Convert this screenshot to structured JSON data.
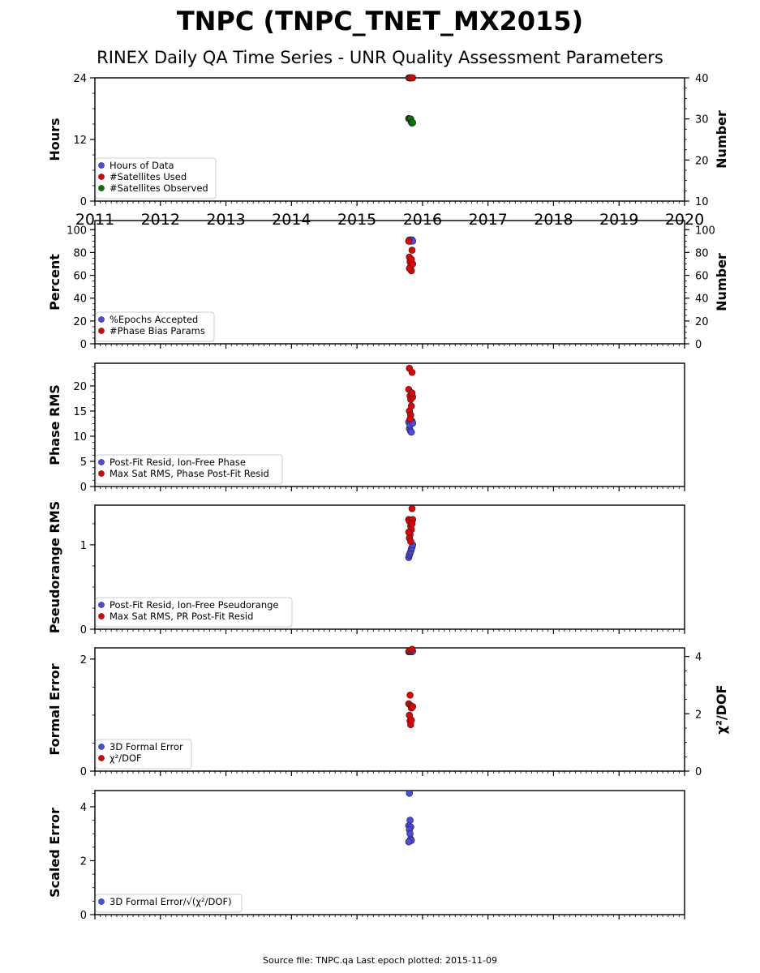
{
  "header": {
    "title": "TNPC (TNPC_TNET_MX2015)",
    "subtitle": "RINEX Daily QA Time Series - UNR Quality Assessment Parameters"
  },
  "footer": "Source file: TNPC.qa Last epoch plotted: 2015-11-09",
  "colors": {
    "blue": "#4a4ae8",
    "red": "#e60000",
    "green": "#007a00"
  },
  "chart_data": [
    {
      "type": "scatter",
      "xlim": [
        2011,
        2020
      ],
      "x_ticks": [
        "2011",
        "2012",
        "2013",
        "2014",
        "2015",
        "2016",
        "2017",
        "2018",
        "2019",
        "2020"
      ],
      "ylabel": "Hours",
      "ylim": [
        0,
        24
      ],
      "y_ticks": [
        "0",
        "12",
        "24"
      ],
      "y2label": "Number",
      "y2lim": [
        10,
        40
      ],
      "y2_ticks": [
        "10",
        "20",
        "30",
        "40"
      ],
      "legend": "lower-left",
      "series": [
        {
          "name": "Hours of Data",
          "color": "blue",
          "axis": "left",
          "points": [
            [
              2015.79,
              24
            ],
            [
              2015.8,
              24
            ],
            [
              2015.81,
              24
            ],
            [
              2015.82,
              24
            ],
            [
              2015.83,
              24
            ],
            [
              2015.84,
              24
            ],
            [
              2015.85,
              24
            ]
          ]
        },
        {
          "name": "#Satellites Used",
          "color": "red",
          "axis": "right",
          "points": [
            [
              2015.8,
              40
            ],
            [
              2015.82,
              40
            ],
            [
              2015.84,
              40
            ]
          ]
        },
        {
          "name": "#Satellites Observed",
          "color": "green",
          "axis": "right",
          "points": [
            [
              2015.79,
              30.1
            ],
            [
              2015.8,
              30.0
            ],
            [
              2015.81,
              29.9
            ],
            [
              2015.82,
              30.0
            ],
            [
              2015.83,
              29.2
            ],
            [
              2015.84,
              29.0
            ],
            [
              2015.85,
              29.1
            ]
          ]
        }
      ]
    },
    {
      "type": "scatter",
      "xlim": [
        2011,
        2020
      ],
      "ylabel": "Percent",
      "ylim": [
        0,
        108
      ],
      "y_ticks": [
        "0",
        "20",
        "40",
        "60",
        "80",
        "100"
      ],
      "y2label": "Number",
      "y2lim": [
        0,
        108
      ],
      "y2_ticks": [
        "0",
        "20",
        "40",
        "60",
        "80",
        "100"
      ],
      "legend": "lower-left",
      "series": [
        {
          "name": "%Epochs Accepted",
          "color": "blue",
          "axis": "left",
          "points": [
            [
              2015.79,
              90
            ],
            [
              2015.8,
              91
            ],
            [
              2015.81,
              90
            ],
            [
              2015.82,
              91
            ],
            [
              2015.83,
              90
            ],
            [
              2015.84,
              91
            ],
            [
              2015.85,
              90
            ]
          ]
        },
        {
          "name": "#Phase Bias Params",
          "color": "red",
          "axis": "right",
          "points": [
            [
              2015.79,
              90
            ],
            [
              2015.8,
              76
            ],
            [
              2015.81,
              72
            ],
            [
              2015.82,
              68
            ],
            [
              2015.83,
              64
            ],
            [
              2015.84,
              82
            ],
            [
              2015.85,
              70
            ],
            [
              2015.8,
              66
            ],
            [
              2015.83,
              74
            ]
          ]
        }
      ]
    },
    {
      "type": "scatter",
      "xlim": [
        2011,
        2020
      ],
      "ylabel": "Phase RMS",
      "ylim": [
        0,
        24.5
      ],
      "y_ticks": [
        "0",
        "5",
        "10",
        "15",
        "20"
      ],
      "legend": "lower-left",
      "series": [
        {
          "name": "Post-Fit Resid, Ion-Free Phase",
          "color": "blue",
          "points": [
            [
              2015.79,
              12.8
            ],
            [
              2015.8,
              11.5
            ],
            [
              2015.81,
              12.2
            ],
            [
              2015.82,
              11.0
            ],
            [
              2015.83,
              10.8
            ],
            [
              2015.84,
              13.0
            ],
            [
              2015.85,
              12.6
            ]
          ]
        },
        {
          "name": "Max Sat RMS, Phase Post-Fit Resid",
          "color": "red",
          "points": [
            [
              2015.8,
              23.5
            ],
            [
              2015.84,
              22.7
            ],
            [
              2015.79,
              19.3
            ],
            [
              2015.81,
              18.0
            ],
            [
              2015.82,
              17.3
            ],
            [
              2015.83,
              16.0
            ],
            [
              2015.85,
              17.8
            ],
            [
              2015.8,
              15.0
            ],
            [
              2015.82,
              14.2
            ],
            [
              2015.81,
              13.4
            ],
            [
              2015.84,
              18.6
            ]
          ]
        }
      ]
    },
    {
      "type": "scatter",
      "xlim": [
        2011,
        2020
      ],
      "ylabel": "Pseudorange RMS",
      "ylim": [
        0,
        1.47
      ],
      "y_ticks": [
        "0",
        "1"
      ],
      "legend": "lower-left",
      "series": [
        {
          "name": "Post-Fit Resid, Ion-Free Pseudorange",
          "color": "blue",
          "points": [
            [
              2015.79,
              0.85
            ],
            [
              2015.8,
              0.88
            ],
            [
              2015.81,
              0.9
            ],
            [
              2015.82,
              0.92
            ],
            [
              2015.83,
              0.95
            ],
            [
              2015.84,
              0.97
            ],
            [
              2015.85,
              1.0
            ]
          ]
        },
        {
          "name": "Max Sat RMS, PR Post-Fit Resid",
          "color": "red",
          "points": [
            [
              2015.84,
              1.43
            ],
            [
              2015.79,
              1.3
            ],
            [
              2015.8,
              1.28
            ],
            [
              2015.82,
              1.22
            ],
            [
              2015.83,
              1.18
            ],
            [
              2015.81,
              1.12
            ],
            [
              2015.85,
              1.3
            ],
            [
              2015.8,
              1.08
            ],
            [
              2015.82,
              1.04
            ],
            [
              2015.84,
              1.25
            ],
            [
              2015.79,
              1.15
            ]
          ]
        }
      ]
    },
    {
      "type": "scatter",
      "xlim": [
        2011,
        2020
      ],
      "ylabel": "Formal Error",
      "ylim": [
        0,
        2.2
      ],
      "y_ticks": [
        "0",
        "2"
      ],
      "y2label": "χ²/DOF",
      "y2lim": [
        0,
        4.3
      ],
      "y2_ticks": [
        "0",
        "2",
        "4"
      ],
      "legend": "lower-left",
      "series": [
        {
          "name": "3D Formal Error",
          "color": "blue",
          "axis": "left",
          "points": [
            [
              2015.79,
              2.13
            ],
            [
              2015.8,
              2.14
            ],
            [
              2015.81,
              2.13
            ],
            [
              2015.82,
              2.15
            ],
            [
              2015.83,
              2.14
            ],
            [
              2015.84,
              2.13
            ],
            [
              2015.85,
              2.14
            ]
          ]
        },
        {
          "name": "χ²/DOF",
          "color": "red",
          "axis": "right",
          "points": [
            [
              2015.8,
              4.2
            ],
            [
              2015.84,
              4.25
            ],
            [
              2015.81,
              2.65
            ],
            [
              2015.79,
              2.35
            ],
            [
              2015.82,
              2.28
            ],
            [
              2015.83,
              2.2
            ],
            [
              2015.8,
              1.95
            ],
            [
              2015.81,
              1.75
            ],
            [
              2015.82,
              1.62
            ],
            [
              2015.85,
              2.25
            ],
            [
              2015.83,
              1.78
            ]
          ]
        }
      ]
    },
    {
      "type": "scatter",
      "xlim": [
        2011,
        2020
      ],
      "ylabel": "Scaled Error",
      "ylim": [
        0,
        4.6
      ],
      "y_ticks": [
        "0",
        "2",
        "4"
      ],
      "legend": "lower-left",
      "series": [
        {
          "name": "3D Formal Error/√(χ²/DOF)",
          "color": "blue",
          "points": [
            [
              2015.8,
              4.5
            ],
            [
              2015.81,
              3.5
            ],
            [
              2015.79,
              3.3
            ],
            [
              2015.82,
              3.25
            ],
            [
              2015.8,
              3.15
            ],
            [
              2015.81,
              3.0
            ],
            [
              2015.82,
              2.8
            ],
            [
              2015.83,
              2.75
            ],
            [
              2015.79,
              2.7
            ]
          ]
        }
      ]
    }
  ]
}
